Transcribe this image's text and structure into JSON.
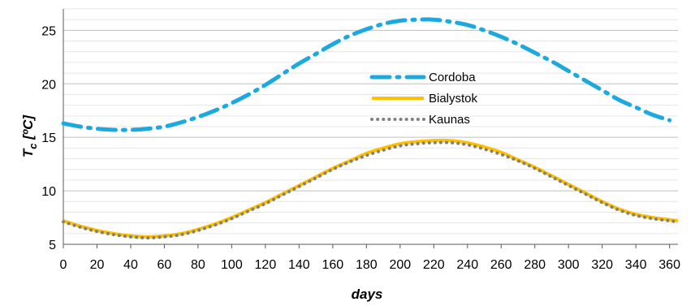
{
  "chart_data": {
    "type": "line",
    "title": "",
    "xlabel": "days",
    "ylabel_main": "T",
    "ylabel_sub": "c",
    "ylabel_unit": " [ºC]",
    "xlim": [
      0,
      365
    ],
    "ylim": [
      5,
      27
    ],
    "xticks": [
      0,
      20,
      40,
      60,
      80,
      100,
      120,
      140,
      160,
      180,
      200,
      220,
      240,
      260,
      280,
      300,
      320,
      340,
      360
    ],
    "yticks": [
      5,
      10,
      15,
      20,
      25
    ],
    "grid": "horizontal minor",
    "legend_position": "center",
    "series": [
      {
        "name": "Cordoba",
        "color": "#1BA9E0",
        "style": "long-dash-dot",
        "x": [
          0,
          10,
          20,
          30,
          40,
          50,
          60,
          70,
          80,
          90,
          100,
          110,
          120,
          130,
          140,
          150,
          160,
          170,
          180,
          190,
          200,
          210,
          220,
          230,
          240,
          250,
          260,
          270,
          280,
          290,
          300,
          310,
          320,
          330,
          340,
          350,
          360
        ],
        "y": [
          16.3,
          16.0,
          15.8,
          15.7,
          15.7,
          15.8,
          16.0,
          16.4,
          16.9,
          17.5,
          18.2,
          19.0,
          19.9,
          20.9,
          21.9,
          22.8,
          23.7,
          24.5,
          25.1,
          25.6,
          25.9,
          26.0,
          26.0,
          25.8,
          25.5,
          25.0,
          24.4,
          23.7,
          22.9,
          22.1,
          21.2,
          20.3,
          19.4,
          18.5,
          17.8,
          17.1,
          16.6
        ]
      },
      {
        "name": "Bialystok",
        "color": "#FFC000",
        "style": "solid",
        "x": [
          0,
          10,
          20,
          30,
          40,
          50,
          60,
          70,
          80,
          90,
          100,
          110,
          120,
          130,
          140,
          150,
          160,
          170,
          180,
          190,
          200,
          210,
          220,
          230,
          240,
          250,
          260,
          270,
          280,
          290,
          300,
          310,
          320,
          330,
          340,
          350,
          360,
          365
        ],
        "y": [
          7.2,
          6.7,
          6.3,
          6.0,
          5.8,
          5.7,
          5.8,
          6.0,
          6.4,
          6.9,
          7.5,
          8.2,
          8.9,
          9.7,
          10.5,
          11.3,
          12.1,
          12.8,
          13.5,
          14.0,
          14.4,
          14.6,
          14.7,
          14.7,
          14.5,
          14.1,
          13.6,
          12.9,
          12.2,
          11.4,
          10.6,
          9.8,
          9.0,
          8.3,
          7.8,
          7.5,
          7.3,
          7.2
        ]
      },
      {
        "name": "Kaunas",
        "color": "#808080",
        "style": "dotted",
        "x": [
          0,
          10,
          20,
          30,
          40,
          50,
          60,
          70,
          80,
          90,
          100,
          110,
          120,
          130,
          140,
          150,
          160,
          170,
          180,
          190,
          200,
          210,
          220,
          230,
          240,
          250,
          260,
          270,
          280,
          290,
          300,
          310,
          320,
          330,
          340,
          350,
          360,
          365
        ],
        "y": [
          7.1,
          6.6,
          6.2,
          5.9,
          5.7,
          5.6,
          5.7,
          5.9,
          6.3,
          6.8,
          7.4,
          8.1,
          8.8,
          9.6,
          10.4,
          11.2,
          12.0,
          12.7,
          13.3,
          13.8,
          14.2,
          14.4,
          14.5,
          14.5,
          14.3,
          13.9,
          13.4,
          12.8,
          12.1,
          11.3,
          10.5,
          9.7,
          8.9,
          8.2,
          7.7,
          7.4,
          7.2,
          7.1
        ]
      }
    ]
  }
}
